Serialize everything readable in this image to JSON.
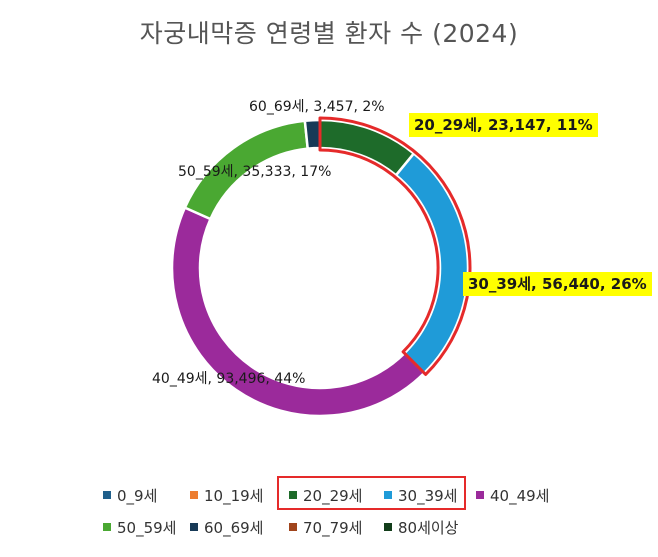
{
  "chart_data": {
    "type": "pie",
    "title": "자궁내막증 연령별 환자 수 (2024)",
    "categories": [
      "0_9세",
      "10_19세",
      "20_29세",
      "30_39세",
      "40_49세",
      "50_59세",
      "60_69세",
      "70_79세",
      "80세이상"
    ],
    "values": [
      null,
      null,
      23147,
      56440,
      93496,
      35333,
      3457,
      null,
      null
    ],
    "percents": [
      null,
      null,
      11,
      26,
      44,
      17,
      2,
      null,
      null
    ],
    "colors": [
      "#1f5f8b",
      "#ed7d31",
      "#1e6b2a",
      "#1f9bd8",
      "#9b2a9b",
      "#4aa832",
      "#173a57",
      "#a0441c",
      "#123d1a"
    ],
    "highlighted": [
      "20_29세",
      "30_39세"
    ],
    "highlight_color": "#e52a2a",
    "labels": [
      {
        "category": "20_29세",
        "text": "20_29세, 23,147, 11%",
        "highlight": true
      },
      {
        "category": "30_39세",
        "text": "30_39세, 56,440, 26%",
        "highlight": true
      },
      {
        "category": "40_49세",
        "text": "40_49세, 93,496, 44%",
        "highlight": false
      },
      {
        "category": "50_59세",
        "text": "50_59세, 35,333, 17%",
        "highlight": false
      },
      {
        "category": "60_69세",
        "text": "60_69세, 3,457, 2%",
        "highlight": false
      }
    ],
    "legend_position": "bottom"
  }
}
